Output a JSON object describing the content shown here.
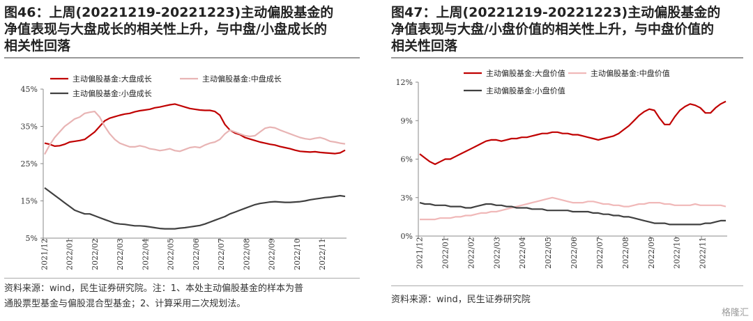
{
  "watermark": "格隆汇",
  "panels": [
    {
      "title": "图46：上周(20221219-20221223)主动偏股基金的\n净值表现与大盘成长的相关性上升，与中盘/小盘成长的\n相关性回落",
      "source": "资料来源：wind，民生证券研究院。注：1、本处主动偏股基金的样本为普\n通股票型基金与偏股混合型基金；2、计算采用二次规划法。"
    },
    {
      "title": "图47：上周(20221219-20221223)主动偏股基金的\n净值表现与大盘/小盘价值的相关性上升，与中盘价值的\n相关性回落",
      "source": "资料来源：wind，民生证券研究院"
    }
  ],
  "chart_data": [
    {
      "type": "line",
      "ylim": [
        5,
        45
      ],
      "y_ticks": [
        "45%",
        "35%",
        "25%",
        "15%",
        "5%"
      ],
      "y_tick_values": [
        45,
        35,
        25,
        15,
        5
      ],
      "x_tick_labels": [
        "2021/12",
        "2022/01",
        "2022/02",
        "2022/03",
        "2022/04",
        "2022/05",
        "2022/06",
        "2022/07",
        "2022/08",
        "2022/09",
        "2022/10",
        "2022/11"
      ],
      "legend_position": "top",
      "series": [
        {
          "name": "主动偏股基金:大盘成长",
          "color": "#c00000",
          "values": [
            30.5,
            30.2,
            29.7,
            29.8,
            30.2,
            30.8,
            31.0,
            31.2,
            31.5,
            32.5,
            33.5,
            35.0,
            36.5,
            37.2,
            37.6,
            38.0,
            38.3,
            38.5,
            38.9,
            39.2,
            39.4,
            39.6,
            40.0,
            40.2,
            40.5,
            40.8,
            41.0,
            40.6,
            40.2,
            39.8,
            39.6,
            39.4,
            39.3,
            39.3,
            39.0,
            38.0,
            35.5,
            34.0,
            33.2,
            32.8,
            32.0,
            31.6,
            31.2,
            30.8,
            30.5,
            30.2,
            30.0,
            29.6,
            29.3,
            29.0,
            28.6,
            28.3,
            28.2,
            28.1,
            28.2,
            28.0,
            27.9,
            27.8,
            27.7,
            27.9,
            28.6
          ]
        },
        {
          "name": "主动偏股基金:中盘成长",
          "color": "#e8b4b4",
          "values": [
            27.5,
            30.0,
            32.0,
            33.5,
            35.0,
            36.0,
            37.0,
            37.5,
            38.5,
            38.8,
            39.0,
            37.5,
            35.0,
            33.0,
            31.5,
            30.5,
            30.0,
            29.5,
            29.5,
            29.8,
            29.5,
            29.0,
            28.8,
            28.5,
            28.7,
            29.0,
            28.5,
            28.3,
            28.8,
            29.3,
            29.5,
            29.3,
            30.0,
            30.5,
            30.8,
            31.5,
            33.0,
            34.0,
            33.5,
            33.0,
            32.5,
            32.3,
            32.5,
            33.5,
            34.5,
            34.8,
            34.6,
            34.0,
            33.5,
            33.0,
            32.5,
            32.0,
            31.7,
            31.5,
            31.8,
            32.0,
            31.6,
            31.0,
            30.8,
            30.5,
            30.3
          ]
        },
        {
          "name": "主动偏股基金:小盘成长",
          "color": "#404040",
          "values": [
            18.5,
            17.5,
            16.5,
            15.5,
            14.5,
            13.5,
            12.5,
            12.0,
            11.5,
            11.5,
            11.0,
            10.5,
            10.0,
            9.5,
            9.0,
            8.8,
            8.7,
            8.5,
            8.3,
            8.3,
            8.2,
            8.0,
            7.8,
            7.6,
            7.5,
            7.5,
            7.5,
            7.7,
            7.8,
            8.0,
            8.2,
            8.4,
            8.8,
            9.3,
            9.8,
            10.3,
            10.8,
            11.5,
            12.0,
            12.5,
            13.0,
            13.5,
            14.0,
            14.3,
            14.5,
            14.7,
            14.8,
            14.7,
            14.6,
            14.6,
            14.7,
            14.8,
            15.0,
            15.3,
            15.5,
            15.7,
            15.9,
            16.0,
            16.2,
            16.4,
            16.2
          ]
        }
      ]
    },
    {
      "type": "line",
      "ylim": [
        0,
        12
      ],
      "y_ticks": [
        "12%",
        "9%",
        "6%",
        "3%",
        "0%"
      ],
      "y_tick_values": [
        12,
        9,
        6,
        3,
        0
      ],
      "x_tick_labels": [
        "2021/12",
        "2022/01",
        "2022/02",
        "2022/03",
        "2022/04",
        "2022/05",
        "2022/06",
        "2022/07",
        "2022/08",
        "2022/09",
        "2022/10",
        "2022/11"
      ],
      "legend_position": "top",
      "series": [
        {
          "name": "主动偏股基金:大盘价值",
          "color": "#c00000",
          "values": [
            6.4,
            6.1,
            5.8,
            5.6,
            5.8,
            6.0,
            6.0,
            6.2,
            6.4,
            6.6,
            6.8,
            7.0,
            7.2,
            7.4,
            7.5,
            7.5,
            7.4,
            7.5,
            7.6,
            7.6,
            7.7,
            7.7,
            7.8,
            7.9,
            8.0,
            8.0,
            8.1,
            8.1,
            8.0,
            8.0,
            7.9,
            7.9,
            7.8,
            7.7,
            7.6,
            7.5,
            7.6,
            7.7,
            7.8,
            8.0,
            8.3,
            8.6,
            9.0,
            9.4,
            9.7,
            9.9,
            9.8,
            9.2,
            8.7,
            8.7,
            9.3,
            9.8,
            10.1,
            10.3,
            10.2,
            10.0,
            9.6,
            9.6,
            10.0,
            10.3,
            10.5
          ]
        },
        {
          "name": "主动偏股基金:中盘价值",
          "color": "#f0b8b8",
          "values": [
            1.3,
            1.3,
            1.3,
            1.3,
            1.4,
            1.4,
            1.4,
            1.5,
            1.5,
            1.6,
            1.6,
            1.7,
            1.8,
            1.8,
            1.9,
            1.9,
            2.0,
            2.1,
            2.2,
            2.3,
            2.4,
            2.5,
            2.6,
            2.7,
            2.8,
            2.9,
            3.0,
            2.9,
            2.8,
            2.7,
            2.6,
            2.6,
            2.6,
            2.7,
            2.7,
            2.6,
            2.5,
            2.5,
            2.4,
            2.4,
            2.3,
            2.3,
            2.4,
            2.5,
            2.5,
            2.6,
            2.6,
            2.6,
            2.5,
            2.5,
            2.4,
            2.4,
            2.4,
            2.4,
            2.5,
            2.4,
            2.4,
            2.4,
            2.4,
            2.4,
            2.3
          ]
        },
        {
          "name": "主动偏股基金:小盘价值",
          "color": "#404040",
          "values": [
            2.6,
            2.5,
            2.5,
            2.4,
            2.4,
            2.4,
            2.3,
            2.3,
            2.3,
            2.2,
            2.2,
            2.3,
            2.4,
            2.5,
            2.5,
            2.4,
            2.4,
            2.3,
            2.3,
            2.2,
            2.2,
            2.2,
            2.1,
            2.1,
            2.1,
            2.0,
            2.0,
            2.0,
            2.0,
            2.0,
            1.9,
            1.9,
            1.9,
            1.9,
            1.8,
            1.8,
            1.7,
            1.7,
            1.6,
            1.6,
            1.5,
            1.5,
            1.4,
            1.3,
            1.2,
            1.1,
            1.0,
            1.0,
            1.0,
            0.9,
            0.9,
            0.9,
            0.9,
            0.9,
            0.9,
            0.9,
            1.0,
            1.0,
            1.1,
            1.2,
            1.2
          ]
        }
      ]
    }
  ]
}
